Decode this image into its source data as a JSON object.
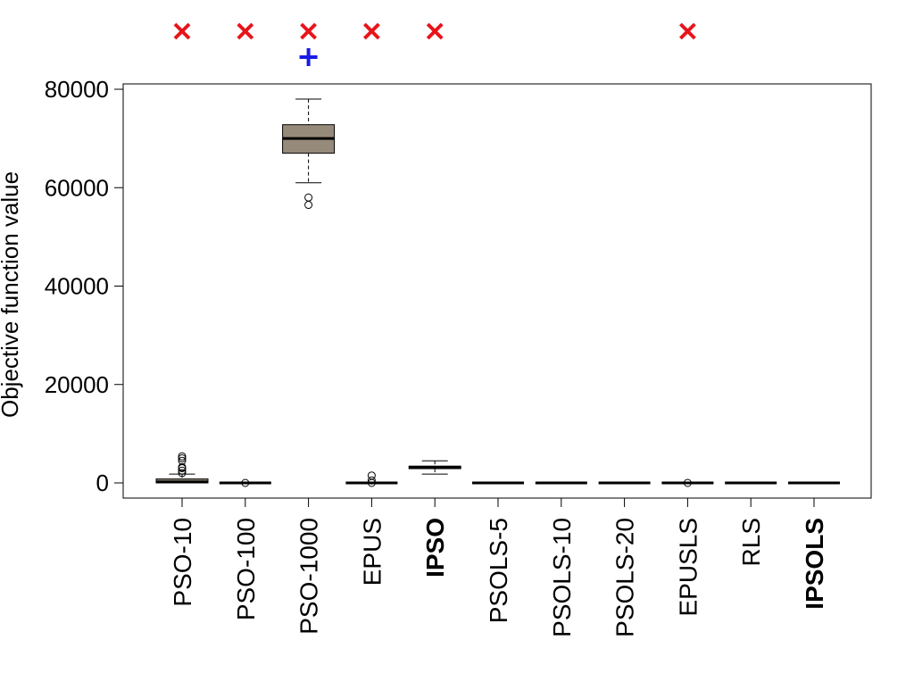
{
  "chart_data": {
    "type": "boxplot",
    "ylabel": "Objective function value",
    "ylim": [
      -3000,
      81000
    ],
    "yticks": [
      0,
      20000,
      40000,
      60000,
      80000
    ],
    "ytick_labels": [
      "0",
      "20000",
      "40000",
      "60000",
      "80000"
    ],
    "categories": [
      "PSO-10",
      "PSO-100",
      "PSO-1000",
      "EPUS",
      "IPSO",
      "PSOLS-5",
      "PSOLS-10",
      "PSOLS-20",
      "EPUSLS",
      "RLS",
      "IPSOLS"
    ],
    "bold_categories": [
      "IPSO",
      "IPSOLS"
    ],
    "box_fill_color": "#968a7a",
    "boxes": [
      {
        "name": "PSO-10",
        "min": 0,
        "q1": 0,
        "median": 200,
        "q3": 800,
        "max": 1800,
        "outliers": [
          2000,
          2500,
          3000,
          3200,
          4500,
          5000,
          5400
        ]
      },
      {
        "name": "PSO-100",
        "min": 0,
        "q1": 0,
        "median": 0,
        "q3": 0,
        "max": 0,
        "outliers": [
          0
        ]
      },
      {
        "name": "PSO-1000",
        "min": 61000,
        "q1": 67000,
        "median": 70000,
        "q3": 72800,
        "max": 78000,
        "outliers": [
          56500,
          58000
        ]
      },
      {
        "name": "EPUS",
        "min": 0,
        "q1": 0,
        "median": 0,
        "q3": 0,
        "max": 0,
        "outliers": [
          0,
          500,
          1500
        ]
      },
      {
        "name": "IPSO",
        "min": 1800,
        "q1": 2900,
        "median": 3200,
        "q3": 3400,
        "max": 4500,
        "outliers": []
      },
      {
        "name": "PSOLS-5",
        "min": 0,
        "q1": 0,
        "median": 0,
        "q3": 0,
        "max": 0,
        "outliers": []
      },
      {
        "name": "PSOLS-10",
        "min": 0,
        "q1": 0,
        "median": 0,
        "q3": 0,
        "max": 0,
        "outliers": []
      },
      {
        "name": "PSOLS-20",
        "min": 0,
        "q1": 0,
        "median": 0,
        "q3": 0,
        "max": 0,
        "outliers": []
      },
      {
        "name": "EPUSLS",
        "min": 0,
        "q1": 0,
        "median": 0,
        "q3": 0,
        "max": 0,
        "outliers": [
          0
        ]
      },
      {
        "name": "RLS",
        "min": 0,
        "q1": 0,
        "median": 0,
        "q3": 0,
        "max": 0,
        "outliers": []
      },
      {
        "name": "IPSOLS",
        "min": 0,
        "q1": 0,
        "median": 0,
        "q3": 0,
        "max": 0,
        "outliers": []
      }
    ],
    "markers": [
      {
        "category": "PSO-10",
        "symbol": "×",
        "color": "#e8141b",
        "row": 1
      },
      {
        "category": "PSO-100",
        "symbol": "×",
        "color": "#e8141b",
        "row": 1
      },
      {
        "category": "PSO-1000",
        "symbol": "×",
        "color": "#e8141b",
        "row": 1
      },
      {
        "category": "PSO-1000",
        "symbol": "+",
        "color": "#1a1ae6",
        "row": 2
      },
      {
        "category": "EPUS",
        "symbol": "×",
        "color": "#e8141b",
        "row": 1
      },
      {
        "category": "IPSO",
        "symbol": "×",
        "color": "#e8141b",
        "row": 1
      },
      {
        "category": "EPUSLS",
        "symbol": "×",
        "color": "#e8141b",
        "row": 1
      }
    ]
  }
}
